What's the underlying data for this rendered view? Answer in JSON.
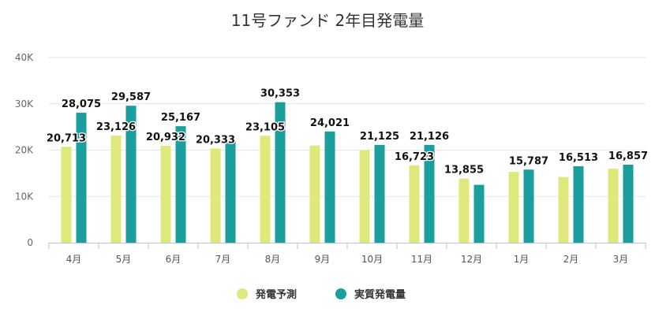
{
  "chart_data": {
    "type": "bar",
    "title": "11号ファンド 2年目発電量",
    "categories": [
      "4月",
      "5月",
      "6月",
      "7月",
      "8月",
      "9月",
      "10月",
      "11月",
      "12月",
      "1月",
      "2月",
      "3月"
    ],
    "series": [
      {
        "name": "発電予測",
        "color": "#dfe87a",
        "values": [
          20713,
          23126,
          20932,
          20333,
          23105,
          21000,
          20000,
          16723,
          13855,
          15300,
          14200,
          16000
        ],
        "labels": [
          "20,713",
          "23,126",
          "20,932",
          "20,333",
          "23,105",
          "",
          "",
          "16,723",
          "13,855",
          "",
          "",
          ""
        ]
      },
      {
        "name": "実質発電量",
        "color": "#1a9e9e",
        "values": [
          28075,
          29587,
          25167,
          22100,
          30353,
          24021,
          21125,
          21126,
          12500,
          15787,
          16513,
          16857
        ],
        "labels": [
          "28,075",
          "29,587",
          "25,167",
          "",
          "30,353",
          "24,021",
          "21,125",
          "21,126",
          "",
          "15,787",
          "16,513",
          "16,857"
        ]
      }
    ],
    "ylim": [
      0,
      40000
    ],
    "yticks": [
      0,
      10000,
      20000,
      30000,
      40000
    ],
    "ytick_labels": [
      "0",
      "10K",
      "20K",
      "30K",
      "40K"
    ],
    "grid": true,
    "legend": "bottom-center"
  }
}
